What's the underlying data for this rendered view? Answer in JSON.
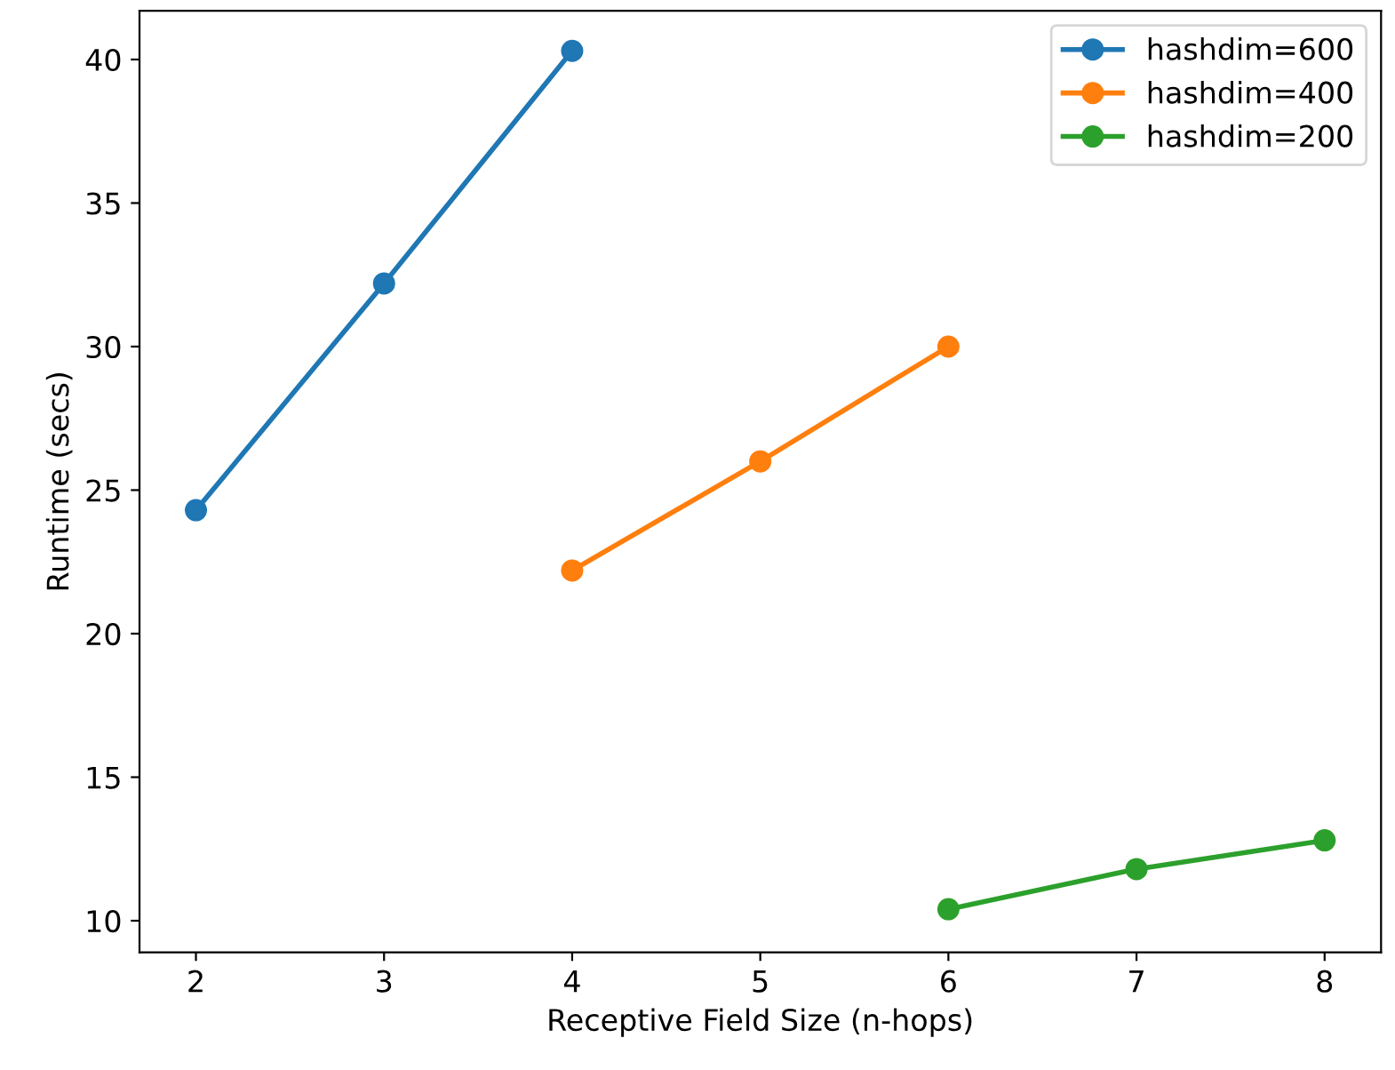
{
  "chart_data": {
    "type": "line",
    "xlabel": "Receptive Field Size (n-hops)",
    "ylabel": "Runtime (secs)",
    "xlim": [
      1.7,
      8.3
    ],
    "ylim": [
      8.9,
      41.7
    ],
    "xticks": [
      2,
      3,
      4,
      5,
      6,
      7,
      8
    ],
    "yticks": [
      10,
      15,
      20,
      25,
      30,
      35,
      40
    ],
    "marker": "circle",
    "line_style": "solid",
    "legend": "top right",
    "grid": false,
    "series": [
      {
        "name": "hashdim=600",
        "color": "#1f77b4",
        "x": [
          2,
          3,
          4
        ],
        "values": [
          24.3,
          32.2,
          40.3
        ]
      },
      {
        "name": "hashdim=400",
        "color": "#ff7f0e",
        "x": [
          4,
          5,
          6
        ],
        "values": [
          22.2,
          26.0,
          30.0
        ]
      },
      {
        "name": "hashdim=200",
        "color": "#2ca02c",
        "x": [
          6,
          7,
          8
        ],
        "values": [
          10.4,
          11.8,
          12.8
        ]
      }
    ]
  }
}
